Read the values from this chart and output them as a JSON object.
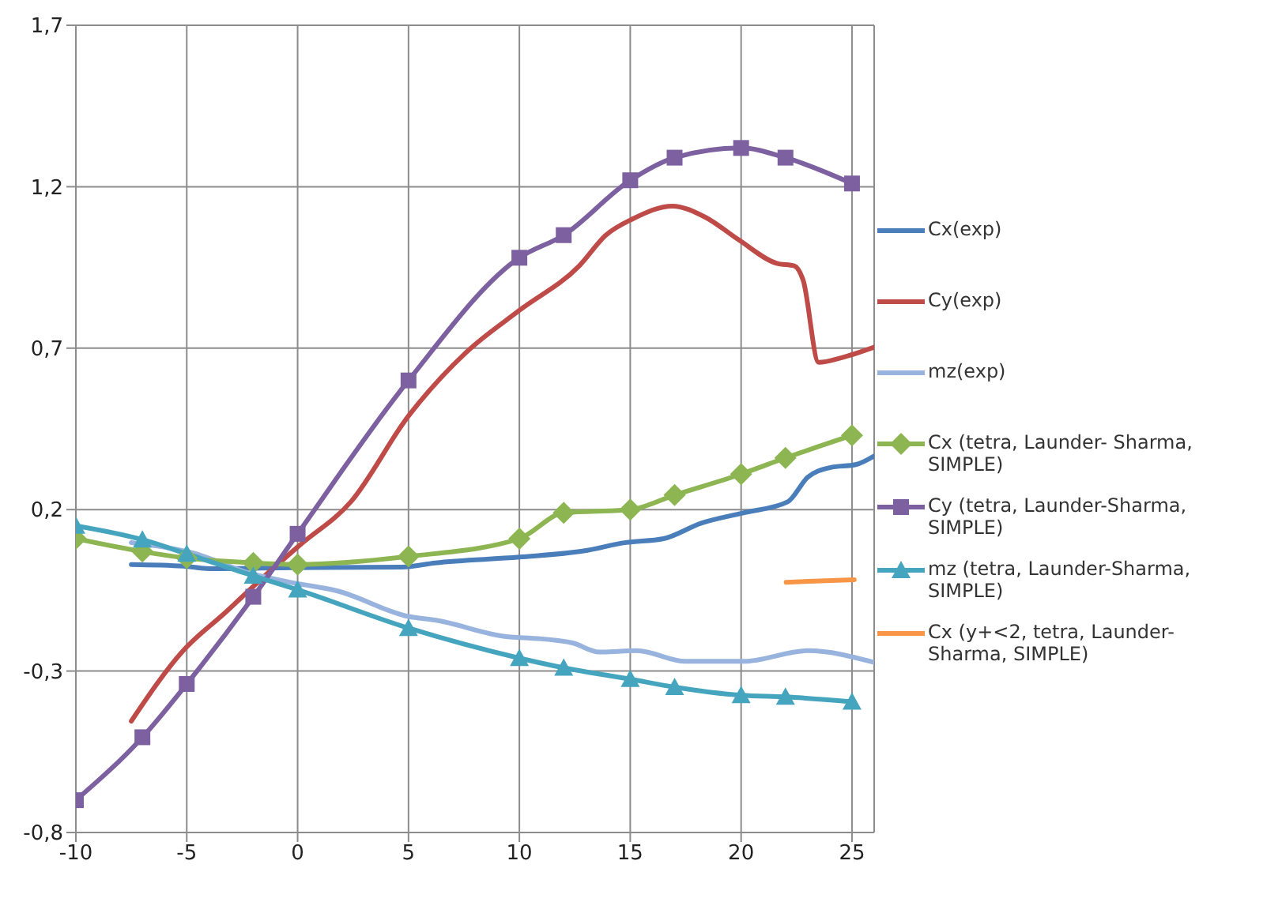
{
  "chart_data": {
    "type": "line",
    "xlim": [
      -10,
      26
    ],
    "xticks": [
      -10,
      -5,
      0,
      5,
      10,
      15,
      20,
      25
    ],
    "ylim": [
      -0.8,
      1.7
    ],
    "yticks": [
      {
        "value": -0.8,
        "label": "-0,8"
      },
      {
        "value": -0.3,
        "label": "-0,3"
      },
      {
        "value": 0.2,
        "label": "0,2"
      },
      {
        "value": 0.7,
        "label": "0,7"
      },
      {
        "value": 1.2,
        "label": "1,2"
      },
      {
        "value": 1.7,
        "label": "1,7"
      }
    ],
    "grid": true,
    "legend": "right",
    "line_style": "solid",
    "series": [
      {
        "name": "Cx(exp)",
        "color": "#4a7ebb",
        "marker": "none",
        "x": [
          -7.5,
          -5.15,
          -3.95,
          -0.1,
          4.7,
          6.2,
          10,
          12.9,
          14.8,
          16.5,
          18.2,
          20.1,
          22.1,
          23,
          24,
          25.2,
          26
        ],
        "values": [
          0.03,
          0.025,
          0.017,
          0.02,
          0.022,
          0.035,
          0.053,
          0.072,
          0.098,
          0.11,
          0.158,
          0.19,
          0.224,
          0.3,
          0.33,
          0.34,
          0.366
        ]
      },
      {
        "name": "Cy(exp)",
        "color": "#be4b48",
        "marker": "none",
        "x": [
          -7.5,
          -5.2,
          -3.2,
          -1.4,
          0.1,
          2.4,
          5,
          7.6,
          10,
          12.7,
          13.9,
          15.1,
          16.9,
          18.4,
          19.9,
          21.6,
          22.4,
          22.8,
          23.5,
          24.5,
          26
        ],
        "values": [
          -0.455,
          -0.24,
          -0.115,
          0,
          0.09,
          0.224,
          0.49,
          0.687,
          0.817,
          0.955,
          1.05,
          1.1,
          1.14,
          1.105,
          1.035,
          0.963,
          0.955,
          0.91,
          0.656,
          0.67,
          0.703
        ]
      },
      {
        "name": "mz(exp)",
        "color": "#98b4de",
        "marker": "none",
        "x": [
          -7.5,
          -4.9,
          -2,
          -0.1,
          1.8,
          5,
          6.2,
          9.5,
          10.5,
          12.4,
          13.6,
          15.3,
          17.5,
          20.1,
          23,
          26
        ],
        "values": [
          0.098,
          0.069,
          0,
          -0.028,
          -0.052,
          -0.131,
          -0.142,
          -0.194,
          -0.198,
          -0.213,
          -0.241,
          -0.237,
          -0.27,
          -0.27,
          -0.237,
          -0.273
        ]
      },
      {
        "name": "Cx (tetra, Launder- Sharma, SIMPLE)",
        "color": "#8db653",
        "marker": "diamond",
        "x": [
          -10,
          -7,
          -5,
          -2,
          0,
          5,
          10,
          12,
          15,
          17,
          20,
          22,
          25
        ],
        "values": [
          0.11,
          0.07,
          0.05,
          0.035,
          0.03,
          0.055,
          0.11,
          0.19,
          0.2,
          0.245,
          0.31,
          0.36,
          0.43
        ]
      },
      {
        "name": "Cy (tetra, Launder-Sharma, SIMPLE)",
        "color": "#7d60a0",
        "marker": "square",
        "x": [
          -10,
          -7,
          -5,
          -2,
          0,
          5,
          10,
          12,
          15,
          17,
          20,
          22,
          25
        ],
        "values": [
          -0.7,
          -0.505,
          -0.34,
          -0.07,
          0.125,
          0.6,
          0.98,
          1.05,
          1.22,
          1.29,
          1.32,
          1.29,
          1.21
        ]
      },
      {
        "name": "mz (tetra, Launder-Sharma, SIMPLE)",
        "color": "#46a5be",
        "marker": "triangle",
        "x": [
          -10,
          -7,
          -5,
          -2,
          0,
          5,
          10,
          12,
          15,
          17,
          20,
          22,
          25
        ],
        "values": [
          0.15,
          0.107,
          0.063,
          -0.005,
          -0.048,
          -0.167,
          -0.26,
          -0.29,
          -0.325,
          -0.35,
          -0.375,
          -0.38,
          -0.395
        ]
      },
      {
        "name": "Cx (y+<2, tetra, Launder- Sharma, SIMPLE)",
        "color": "#f79646",
        "marker": "none",
        "x": [
          22.03,
          25.1
        ],
        "values": [
          -0.025,
          -0.017
        ]
      }
    ]
  }
}
